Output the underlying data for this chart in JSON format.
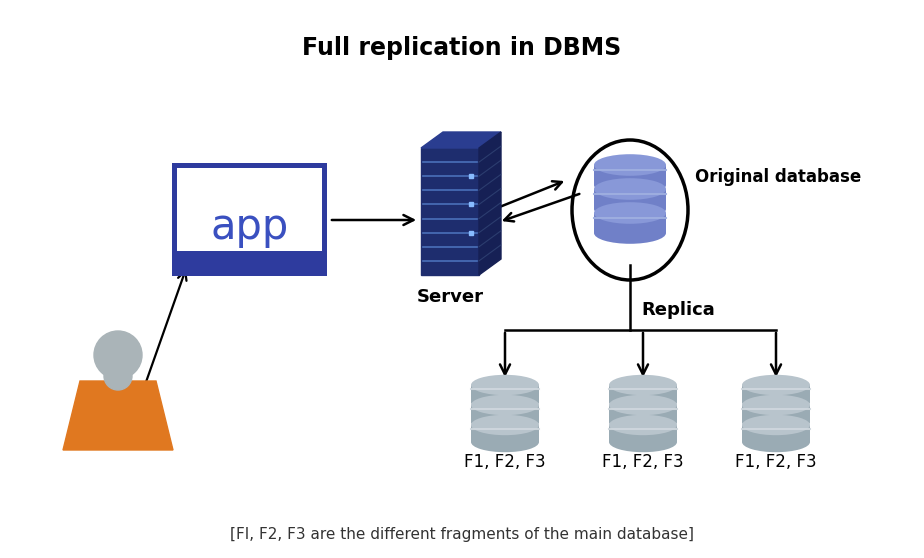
{
  "title": "Full replication in DBMS",
  "title_fontsize": 17,
  "title_fontweight": "bold",
  "footnote": "[FI, F2, F3 are the different fragments of the main database]",
  "footnote_fontsize": 11,
  "background_color": "#ffffff",
  "app_box_color": "#2e3b9e",
  "app_box_top_color": "#2e3b9e",
  "app_text": "app",
  "app_text_color": "#3a50c0",
  "app_text_fontsize": 30,
  "server_label": "Server",
  "orig_db_label": "Original database",
  "replica_label": "Replica",
  "replica_labels": [
    "F1, F2, F3",
    "F1, F2, F3",
    "F1, F2, F3"
  ],
  "label_fontsize": 12,
  "arrow_color": "#000000",
  "person_head_color": "#aab4b8",
  "person_body_color": "#e07820",
  "db_color_orig_top": "#8898d8",
  "db_color_orig_body": "#7080c8",
  "db_color_orig_stripe": "#a0b0e0",
  "db_color_replica_top": "#b8c4cc",
  "db_color_replica_body": "#9aabB4",
  "db_color_replica_stripe": "#d0d8de",
  "server_color_front": "#1e2d6e",
  "server_color_top": "#2a3d90",
  "server_color_right": "#162055",
  "server_stripe_color": "#5580cc"
}
